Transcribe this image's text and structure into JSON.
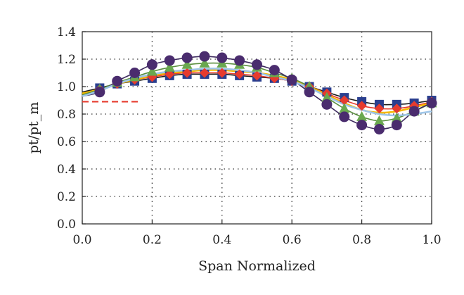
{
  "chart_data": {
    "type": "line",
    "title": "",
    "xlabel": "Span Normalized",
    "ylabel": "pt/pt_m",
    "xlim": [
      0.0,
      1.0
    ],
    "ylim": [
      0.0,
      1.4
    ],
    "xticks": [
      "0.0",
      "0.2",
      "0.4",
      "0.6",
      "0.8",
      "1.0"
    ],
    "yticks": [
      "0.0",
      "0.2",
      "0.4",
      "0.6",
      "0.8",
      "1.0",
      "1.2",
      "1.4"
    ],
    "grid": "dotted",
    "legend": "none",
    "x": [
      0.0,
      0.05,
      0.1,
      0.15,
      0.2,
      0.25,
      0.3,
      0.35,
      0.4,
      0.45,
      0.5,
      0.55,
      0.6,
      0.65,
      0.7,
      0.75,
      0.8,
      0.85,
      0.9,
      0.95,
      1.0
    ],
    "series": [
      {
        "marker": "square",
        "color": "#2a3f8f",
        "line_color": "#1a1a1a",
        "values": [
          0.96,
          0.99,
          1.02,
          1.04,
          1.06,
          1.08,
          1.09,
          1.09,
          1.09,
          1.08,
          1.07,
          1.06,
          1.04,
          1.0,
          0.96,
          0.92,
          0.89,
          0.87,
          0.87,
          0.88,
          0.9
        ]
      },
      {
        "marker": "diamond",
        "color": "#e63b2e",
        "line_color": "#e63b2e",
        "values": [
          0.95,
          0.98,
          1.02,
          1.05,
          1.07,
          1.09,
          1.1,
          1.1,
          1.1,
          1.09,
          1.08,
          1.06,
          1.04,
          1.0,
          0.95,
          0.9,
          0.86,
          0.84,
          0.84,
          0.86,
          0.89
        ]
      },
      {
        "marker": "line",
        "color": "#f5b800",
        "line_color": "#f5b800",
        "values": [
          0.95,
          0.98,
          1.02,
          1.05,
          1.08,
          1.1,
          1.11,
          1.12,
          1.12,
          1.11,
          1.1,
          1.08,
          1.05,
          1.0,
          0.94,
          0.88,
          0.83,
          0.81,
          0.82,
          0.85,
          0.88
        ]
      },
      {
        "marker": "triangle",
        "color": "#6aa84f",
        "line_color": "#5a8f3e",
        "values": [
          0.94,
          0.98,
          1.03,
          1.07,
          1.11,
          1.14,
          1.16,
          1.17,
          1.17,
          1.16,
          1.14,
          1.1,
          1.06,
          1.0,
          0.92,
          0.84,
          0.78,
          0.75,
          0.77,
          0.82,
          0.88
        ]
      },
      {
        "marker": "circle",
        "color": "#4a2c6e",
        "line_color": "#3d2a5e",
        "values": [
          0.93,
          0.96,
          1.04,
          1.1,
          1.16,
          1.19,
          1.21,
          1.22,
          1.21,
          1.19,
          1.16,
          1.12,
          1.05,
          0.96,
          0.87,
          0.78,
          0.72,
          0.69,
          0.72,
          0.82,
          0.88
        ]
      },
      {
        "marker": "line",
        "color": "#9ec5e8",
        "line_color": "#9ec5e8",
        "values": [
          0.93,
          0.97,
          1.02,
          1.06,
          1.09,
          1.11,
          1.12,
          1.13,
          1.13,
          1.12,
          1.1,
          1.07,
          1.04,
          0.99,
          0.93,
          0.87,
          0.83,
          0.8,
          0.79,
          0.8,
          0.82
        ]
      }
    ],
    "reference_line": {
      "color": "#e63b2e",
      "style": "dashed",
      "x_range": [
        0.0,
        0.16
      ],
      "y": 0.89
    }
  }
}
